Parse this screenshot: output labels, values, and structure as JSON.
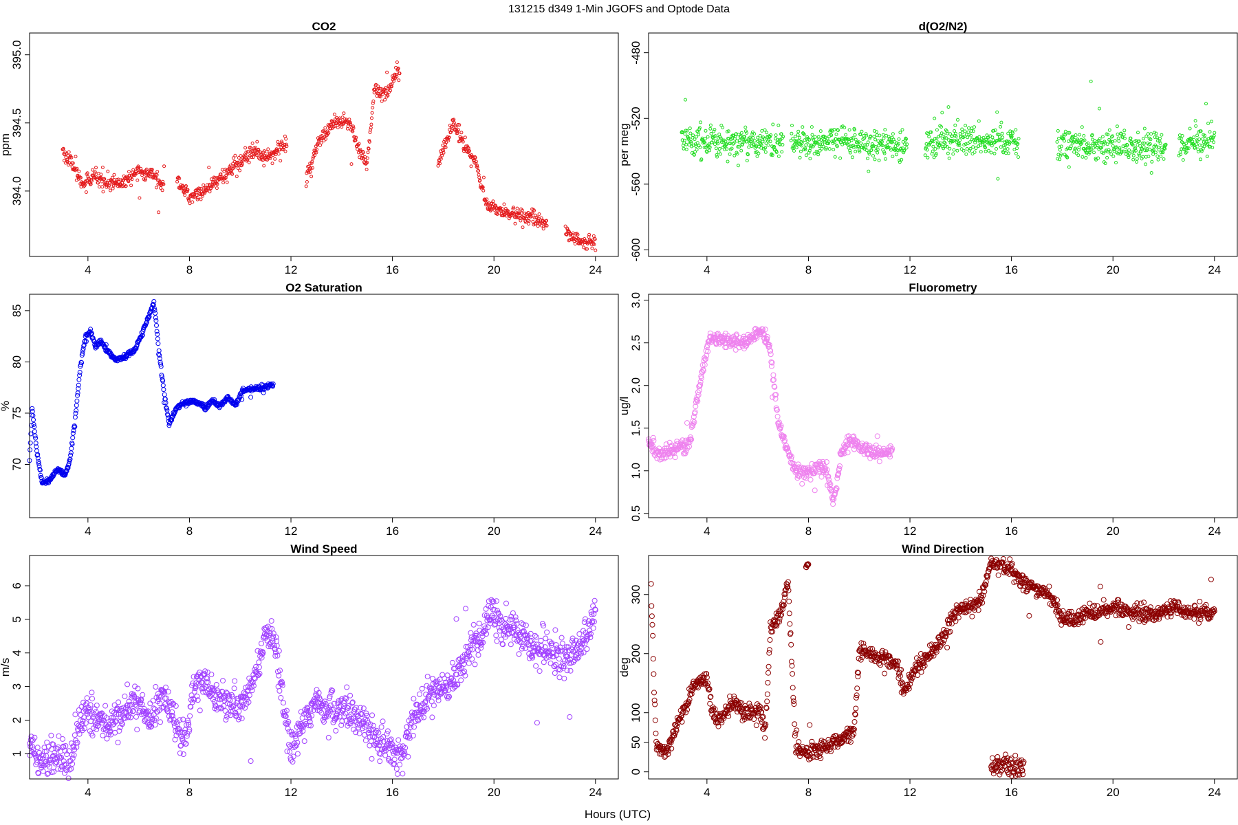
{
  "figure": {
    "title": "131215   d349   1-Min  JGOFS and Optode Data",
    "xlabel": "Hours (UTC)"
  },
  "chart_data": [
    {
      "type": "scatter",
      "title": "CO2",
      "ylabel": "ppm",
      "xlim": [
        1.7,
        24.9
      ],
      "ylim": [
        393.52,
        395.16
      ],
      "xticks": [
        4,
        8,
        12,
        16,
        20,
        24
      ],
      "yticks": [
        394.0,
        394.5,
        395.0
      ],
      "color": "#e41a1c",
      "marker_size": 2.0,
      "gaps": [
        [
          7.0,
          7.5
        ],
        [
          11.85,
          12.6
        ],
        [
          16.3,
          17.8
        ],
        [
          22.1,
          22.8
        ]
      ],
      "noise": 0.035,
      "knots": [
        [
          3.0,
          394.3
        ],
        [
          3.5,
          394.15
        ],
        [
          3.8,
          394.05
        ],
        [
          4.2,
          394.1
        ],
        [
          4.8,
          394.08
        ],
        [
          5.3,
          394.05
        ],
        [
          6.0,
          394.15
        ],
        [
          6.5,
          394.12
        ],
        [
          7.0,
          394.05
        ],
        [
          7.5,
          394.1
        ],
        [
          8.0,
          393.95
        ],
        [
          8.6,
          394.0
        ],
        [
          9.3,
          394.1
        ],
        [
          9.8,
          394.2
        ],
        [
          10.5,
          394.28
        ],
        [
          11.2,
          394.25
        ],
        [
          11.8,
          394.35
        ],
        [
          12.6,
          394.1
        ],
        [
          13.2,
          394.4
        ],
        [
          13.7,
          394.5
        ],
        [
          14.3,
          394.5
        ],
        [
          14.7,
          394.3
        ],
        [
          15.0,
          394.2
        ],
        [
          15.3,
          394.75
        ],
        [
          15.8,
          394.7
        ],
        [
          16.2,
          394.9
        ],
        [
          17.8,
          394.2
        ],
        [
          18.4,
          394.5
        ],
        [
          18.8,
          394.35
        ],
        [
          19.3,
          394.2
        ],
        [
          19.7,
          393.9
        ],
        [
          20.3,
          393.85
        ],
        [
          21.0,
          393.82
        ],
        [
          21.6,
          393.8
        ],
        [
          22.1,
          393.75
        ],
        [
          22.8,
          393.7
        ],
        [
          23.5,
          393.62
        ],
        [
          24.0,
          393.62
        ]
      ]
    },
    {
      "type": "scatter",
      "title": "d(O2/N2)",
      "ylabel": "per meg",
      "xlim": [
        1.7,
        24.9
      ],
      "ylim": [
        -604,
        -468
      ],
      "xticks": [
        4,
        8,
        12,
        16,
        20,
        24
      ],
      "yticks": [
        -600,
        -560,
        -520,
        -480
      ],
      "color": "#22dd22",
      "marker_size": 2.0,
      "gaps": [
        [
          7.0,
          7.3
        ],
        [
          11.9,
          12.6
        ],
        [
          16.3,
          17.8
        ],
        [
          22.1,
          22.6
        ]
      ],
      "noise": 6,
      "knots": [
        [
          3.0,
          -533
        ],
        [
          5.0,
          -534
        ],
        [
          7.0,
          -535
        ],
        [
          9.0,
          -534
        ],
        [
          12.0,
          -536
        ],
        [
          14.0,
          -532
        ],
        [
          16.3,
          -534
        ],
        [
          17.8,
          -536
        ],
        [
          20.0,
          -538
        ],
        [
          22.1,
          -537
        ],
        [
          22.6,
          -535
        ],
        [
          24.0,
          -534
        ]
      ]
    },
    {
      "type": "scatter",
      "title": "O2 Saturation",
      "ylabel": "%",
      "xlim": [
        1.7,
        24.9
      ],
      "ylim": [
        64.8,
        86.6
      ],
      "xticks": [
        4,
        8,
        12,
        16,
        20,
        24
      ],
      "yticks": [
        70,
        75,
        80,
        85
      ],
      "color": "#0000ee",
      "marker_size": 3.0,
      "gaps": [],
      "noise": 0.15,
      "knots": [
        [
          1.7,
          70.5
        ],
        [
          1.8,
          75.5
        ],
        [
          2.0,
          71.0
        ],
        [
          2.2,
          68.2
        ],
        [
          2.5,
          68.5
        ],
        [
          2.8,
          69.5
        ],
        [
          3.1,
          69.0
        ],
        [
          3.3,
          70.5
        ],
        [
          3.5,
          74.5
        ],
        [
          3.7,
          79.5
        ],
        [
          3.9,
          82.5
        ],
        [
          4.1,
          83.0
        ],
        [
          4.3,
          81.5
        ],
        [
          4.5,
          82.0
        ],
        [
          4.8,
          81.0
        ],
        [
          5.1,
          80.2
        ],
        [
          5.4,
          80.5
        ],
        [
          5.8,
          81.0
        ],
        [
          6.1,
          82.5
        ],
        [
          6.4,
          84.5
        ],
        [
          6.6,
          85.8
        ],
        [
          6.8,
          81.0
        ],
        [
          7.0,
          77.0
        ],
        [
          7.2,
          74.0
        ],
        [
          7.5,
          75.5
        ],
        [
          7.8,
          76.0
        ],
        [
          8.1,
          76.2
        ],
        [
          8.4,
          76.0
        ],
        [
          8.6,
          75.5
        ],
        [
          8.9,
          76.2
        ],
        [
          9.2,
          75.7
        ],
        [
          9.5,
          76.5
        ],
        [
          9.8,
          75.8
        ],
        [
          10.1,
          77.2
        ],
        [
          10.5,
          77.4
        ],
        [
          10.9,
          77.5
        ],
        [
          11.3,
          77.8
        ]
      ]
    },
    {
      "type": "scatter",
      "title": "Fluorometry",
      "ylabel": "ug/l",
      "xlim": [
        1.7,
        24.9
      ],
      "ylim": [
        0.45,
        3.07
      ],
      "xticks": [
        4,
        8,
        12,
        16,
        20,
        24
      ],
      "yticks": [
        0.5,
        1.0,
        1.5,
        2.0,
        2.5,
        3.0
      ],
      "color": "#ee82ee",
      "marker_size": 3.5,
      "gaps": [],
      "noise": 0.05,
      "knots": [
        [
          1.7,
          1.35
        ],
        [
          2.0,
          1.2
        ],
        [
          2.5,
          1.22
        ],
        [
          3.0,
          1.3
        ],
        [
          3.3,
          1.3
        ],
        [
          3.6,
          1.8
        ],
        [
          3.9,
          2.3
        ],
        [
          4.1,
          2.55
        ],
        [
          4.5,
          2.55
        ],
        [
          5.0,
          2.5
        ],
        [
          5.5,
          2.5
        ],
        [
          5.9,
          2.6
        ],
        [
          6.2,
          2.65
        ],
        [
          6.5,
          2.4
        ],
        [
          6.8,
          1.6
        ],
        [
          7.1,
          1.3
        ],
        [
          7.5,
          1.0
        ],
        [
          8.0,
          0.98
        ],
        [
          8.4,
          1.05
        ],
        [
          8.7,
          1.0
        ],
        [
          9.0,
          0.65
        ],
        [
          9.3,
          1.2
        ],
        [
          9.6,
          1.35
        ],
        [
          10.0,
          1.3
        ],
        [
          10.5,
          1.2
        ],
        [
          11.0,
          1.2
        ],
        [
          11.3,
          1.25
        ]
      ]
    },
    {
      "type": "scatter",
      "title": "Wind Speed",
      "ylabel": "m/s",
      "xlim": [
        1.7,
        24.9
      ],
      "ylim": [
        0.25,
        6.9
      ],
      "xticks": [
        4,
        8,
        12,
        16,
        20,
        24
      ],
      "yticks": [
        1,
        2,
        3,
        4,
        5,
        6
      ],
      "color": "#a040ff",
      "marker_size": 3.5,
      "gaps": [],
      "noise": 0.35,
      "knots": [
        [
          1.7,
          1.5
        ],
        [
          2.0,
          0.8
        ],
        [
          2.5,
          1.0
        ],
        [
          3.0,
          0.9
        ],
        [
          3.3,
          0.6
        ],
        [
          3.6,
          1.8
        ],
        [
          4.0,
          2.2
        ],
        [
          4.5,
          2.0
        ],
        [
          5.0,
          1.9
        ],
        [
          5.5,
          2.3
        ],
        [
          6.0,
          2.5
        ],
        [
          6.5,
          2.0
        ],
        [
          7.0,
          2.8
        ],
        [
          7.5,
          1.8
        ],
        [
          7.8,
          1.3
        ],
        [
          8.2,
          3.0
        ],
        [
          8.6,
          3.2
        ],
        [
          9.0,
          2.8
        ],
        [
          9.5,
          2.6
        ],
        [
          10.0,
          2.4
        ],
        [
          10.5,
          3.2
        ],
        [
          11.0,
          4.5
        ],
        [
          11.3,
          4.6
        ],
        [
          11.6,
          3.0
        ],
        [
          12.0,
          1.0
        ],
        [
          12.5,
          2.0
        ],
        [
          13.0,
          2.5
        ],
        [
          13.5,
          2.2
        ],
        [
          14.0,
          2.3
        ],
        [
          14.5,
          2.1
        ],
        [
          15.0,
          1.8
        ],
        [
          15.5,
          1.2
        ],
        [
          16.0,
          1.1
        ],
        [
          16.4,
          1.0
        ],
        [
          16.8,
          2.0
        ],
        [
          17.5,
          2.8
        ],
        [
          18.0,
          3.0
        ],
        [
          18.5,
          3.3
        ],
        [
          19.0,
          4.0
        ],
        [
          19.5,
          4.5
        ],
        [
          19.8,
          5.2
        ],
        [
          20.3,
          4.8
        ],
        [
          20.8,
          4.7
        ],
        [
          21.3,
          4.3
        ],
        [
          21.8,
          4.0
        ],
        [
          22.3,
          4.0
        ],
        [
          22.8,
          3.8
        ],
        [
          23.3,
          4.2
        ],
        [
          23.8,
          4.8
        ],
        [
          24.0,
          5.0
        ]
      ]
    },
    {
      "type": "scatter",
      "title": "Wind Direction",
      "ylabel": "deg",
      "xlim": [
        1.7,
        24.9
      ],
      "ylim": [
        -12,
        366
      ],
      "xticks": [
        4,
        8,
        12,
        16,
        20,
        24
      ],
      "yticks": [
        0,
        50,
        100,
        200,
        300
      ],
      "color": "#8b0000",
      "marker_size": 3.5,
      "gaps": [],
      "noise": 9,
      "knots": [
        [
          1.8,
          320
        ],
        [
          1.9,
          160
        ],
        [
          2.0,
          50
        ],
        [
          2.4,
          30
        ],
        [
          2.8,
          80
        ],
        [
          3.2,
          110
        ],
        [
          3.5,
          150
        ],
        [
          4.0,
          160
        ],
        [
          4.2,
          100
        ],
        [
          4.6,
          90
        ],
        [
          5.0,
          120
        ],
        [
          5.4,
          100
        ],
        [
          5.8,
          100
        ],
        [
          6.1,
          110
        ],
        [
          6.3,
          70
        ],
        [
          6.5,
          240
        ],
        [
          6.9,
          270
        ],
        [
          7.2,
          320
        ],
        [
          7.5,
          40
        ],
        [
          8.0,
          30
        ],
        [
          8.5,
          40
        ],
        [
          9.0,
          50
        ],
        [
          9.5,
          60
        ],
        [
          9.8,
          70
        ],
        [
          10.0,
          200
        ],
        [
          10.5,
          200
        ],
        [
          11.0,
          190
        ],
        [
          11.5,
          180
        ],
        [
          11.8,
          140
        ],
        [
          12.3,
          180
        ],
        [
          12.8,
          200
        ],
        [
          13.3,
          230
        ],
        [
          13.8,
          270
        ],
        [
          14.3,
          280
        ],
        [
          14.8,
          290
        ],
        [
          15.2,
          350
        ],
        [
          15.6,
          350
        ],
        [
          16.0,
          340
        ],
        [
          16.5,
          320
        ],
        [
          17.0,
          310
        ],
        [
          17.5,
          300
        ],
        [
          18.0,
          260
        ],
        [
          18.5,
          260
        ],
        [
          19.0,
          270
        ],
        [
          19.5,
          270
        ],
        [
          20.0,
          280
        ],
        [
          20.5,
          270
        ],
        [
          21.0,
          270
        ],
        [
          21.5,
          265
        ],
        [
          22.0,
          270
        ],
        [
          22.5,
          280
        ],
        [
          23.0,
          270
        ],
        [
          23.5,
          270
        ],
        [
          24.0,
          265
        ]
      ],
      "extra_clusters": [
        [
          15.2,
          16.5,
          10,
          8
        ],
        [
          7.9,
          8.0,
          350,
          4
        ]
      ]
    }
  ]
}
